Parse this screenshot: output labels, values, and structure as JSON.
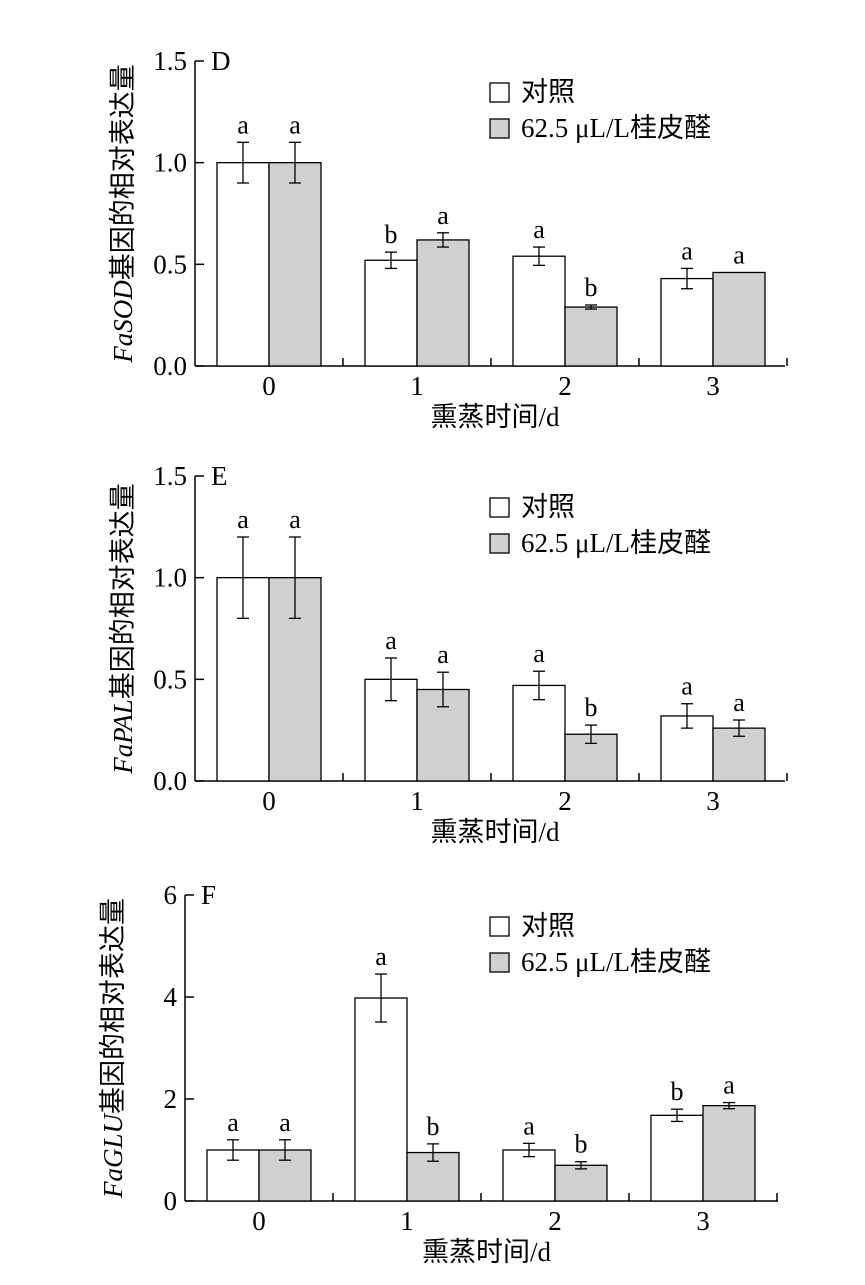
{
  "chart_data": [
    {
      "panel": "D",
      "type": "bar",
      "ylabel_italic": "FaSOD",
      "ylabel_rest": "基因的相对表达量",
      "xlabel": "熏蒸时间/d",
      "categories": [
        "0",
        "1",
        "2",
        "3"
      ],
      "ylim": [
        0,
        1.5
      ],
      "yticks": [
        "0.0",
        "0.5",
        "1.0",
        "1.5"
      ],
      "legend_position": "top-right",
      "series": [
        {
          "name": "对照",
          "color": "#ffffff",
          "values": [
            1.0,
            0.52,
            0.54,
            0.43
          ],
          "errors": [
            0.1,
            0.04,
            0.045,
            0.05
          ],
          "letters": [
            "a",
            "b",
            "a",
            "a"
          ]
        },
        {
          "name": "62.5 μL/L桂皮醛",
          "color": "#d0d0d0",
          "values": [
            1.0,
            0.62,
            0.29,
            0.46
          ],
          "errors": [
            0.1,
            0.035,
            0.01,
            0.0
          ],
          "letters": [
            "a",
            "a",
            "b",
            "a"
          ]
        }
      ]
    },
    {
      "panel": "E",
      "type": "bar",
      "ylabel_italic": "FaPAL",
      "ylabel_rest": "基因的相对表达量",
      "xlabel": "熏蒸时间/d",
      "categories": [
        "0",
        "1",
        "2",
        "3"
      ],
      "ylim": [
        0,
        1.5
      ],
      "yticks": [
        "0.0",
        "0.5",
        "1.0",
        "1.5"
      ],
      "legend_position": "top-right",
      "series": [
        {
          "name": "对照",
          "color": "#ffffff",
          "values": [
            1.0,
            0.5,
            0.47,
            0.32
          ],
          "errors": [
            0.2,
            0.105,
            0.07,
            0.06
          ],
          "letters": [
            "a",
            "a",
            "a",
            "a"
          ]
        },
        {
          "name": "62.5 μL/L桂皮醛",
          "color": "#d0d0d0",
          "values": [
            1.0,
            0.45,
            0.23,
            0.26
          ],
          "errors": [
            0.2,
            0.085,
            0.045,
            0.04
          ],
          "letters": [
            "a",
            "a",
            "b",
            "a"
          ]
        }
      ]
    },
    {
      "panel": "F",
      "type": "bar",
      "ylabel_italic": "FaGLU",
      "ylabel_rest": "基因的相对表达量",
      "xlabel": "熏蒸时间/d",
      "categories": [
        "0",
        "1",
        "2",
        "3"
      ],
      "ylim": [
        0,
        6
      ],
      "yticks": [
        "0",
        "2",
        "4",
        "6"
      ],
      "legend_position": "top-right",
      "series": [
        {
          "name": "对照",
          "color": "#ffffff",
          "values": [
            1.0,
            3.98,
            1.0,
            1.68
          ],
          "errors": [
            0.2,
            0.47,
            0.13,
            0.12
          ],
          "letters": [
            "a",
            "a",
            "a",
            "b"
          ]
        },
        {
          "name": "62.5 μL/L桂皮醛",
          "color": "#d0d0d0",
          "values": [
            1.0,
            0.95,
            0.7,
            1.87
          ],
          "errors": [
            0.2,
            0.17,
            0.07,
            0.06
          ],
          "letters": [
            "a",
            "b",
            "b",
            "a"
          ]
        }
      ]
    }
  ]
}
